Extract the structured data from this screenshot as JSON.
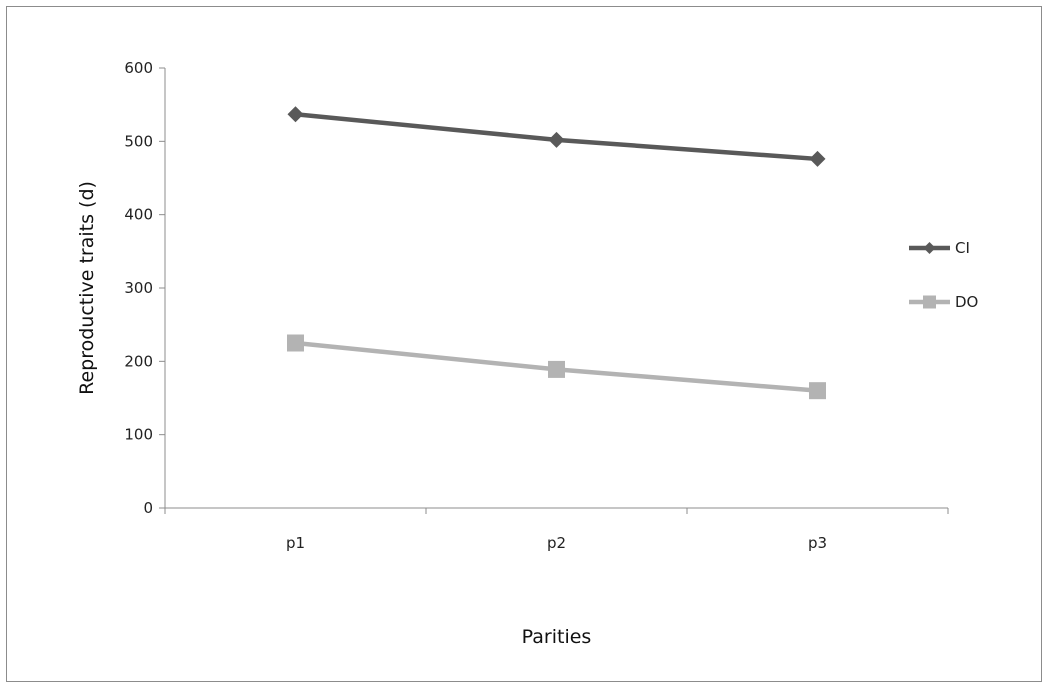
{
  "chart_data": {
    "type": "line",
    "title": "",
    "xlabel": "Parities",
    "ylabel": "Reproductive  traits (d)",
    "categories": [
      "p1",
      "p2",
      "p3"
    ],
    "ylim": [
      0,
      600
    ],
    "yticks": [
      0,
      100,
      200,
      300,
      400,
      500,
      600
    ],
    "grid": false,
    "legend_position": "right",
    "series": [
      {
        "name": "CI",
        "values": [
          537,
          502,
          476
        ],
        "color": "#595959",
        "marker": "diamond"
      },
      {
        "name": "DO",
        "values": [
          225,
          189,
          160
        ],
        "color": "#b3b3b3",
        "marker": "square"
      }
    ]
  }
}
